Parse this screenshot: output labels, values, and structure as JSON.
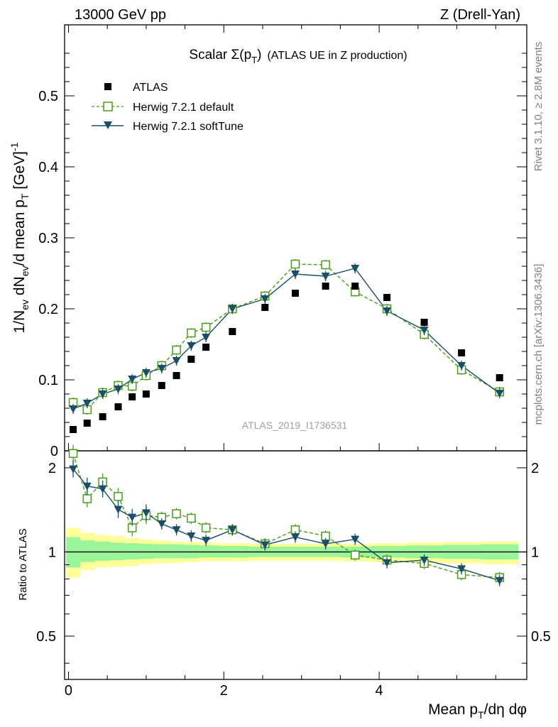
{
  "header": {
    "energy_label": "13000 GeV pp",
    "process_label": "Z (Drell-Yan)"
  },
  "side_labels": {
    "rivet": "Rivet 3.1.10, ≥ 2.8M events",
    "mcplots": "mcplots.cern.ch [arXiv:1306.3436]"
  },
  "analysis_id": "ATLAS_2019_I1736531",
  "chart_data": {
    "type": "scatter",
    "title": "Scalar Σ(pT) (ATLAS UE in Z production)",
    "title_parts": {
      "prefix": "Scalar Σ(p",
      "sub": "T",
      "suffix": ")",
      "note": "(ATLAS UE in Z production)"
    },
    "xlabel": "Mean pT/dη dφ",
    "ylabel": "1/Nev dNev/d mean pT [GeV]^-1",
    "ratio_ylabel": "Ratio to ATLAS",
    "xlim": [
      -0.05,
      5.9
    ],
    "ylim": [
      0,
      0.6
    ],
    "ratio_ylim": [
      0.35,
      2.3
    ],
    "x_ticks": [
      "0",
      "2",
      "4"
    ],
    "y_ticks": [
      "0",
      "0.1",
      "0.2",
      "0.3",
      "0.4",
      "0.5"
    ],
    "ratio_ticks": [
      "0.5",
      "1",
      "2"
    ],
    "legend_position": "top-left",
    "x": [
      0.06,
      0.24,
      0.44,
      0.64,
      0.82,
      1.0,
      1.2,
      1.39,
      1.58,
      1.77,
      2.11,
      2.53,
      2.92,
      3.31,
      3.69,
      4.1,
      4.58,
      5.06,
      5.55
    ],
    "series": [
      {
        "name": "ATLAS",
        "style": "data",
        "color": "#000000",
        "values": [
          0.03,
          0.039,
          0.048,
          0.062,
          0.076,
          0.08,
          0.092,
          0.106,
          0.129,
          0.146,
          0.168,
          0.202,
          0.222,
          0.232,
          0.232,
          0.216,
          0.181,
          0.138,
          0.103
        ]
      },
      {
        "name": "Herwig 7.2.1 default",
        "style": "open-square-dashed",
        "color": "#4a9a1c",
        "values": [
          0.068,
          0.058,
          0.082,
          0.092,
          0.091,
          0.106,
          0.12,
          0.142,
          0.166,
          0.174,
          0.2,
          0.218,
          0.263,
          0.262,
          0.224,
          0.2,
          0.164,
          0.114,
          0.083
        ],
        "ratio": [
          2.25,
          1.55,
          1.78,
          1.58,
          1.22,
          1.35,
          1.33,
          1.37,
          1.32,
          1.22,
          1.2,
          1.07,
          1.2,
          1.14,
          0.975,
          0.935,
          0.91,
          0.83,
          0.81
        ]
      },
      {
        "name": "Herwig 7.2.1 softTune",
        "style": "filled-triangle-solid",
        "color": "#1a4f66",
        "values": [
          0.059,
          0.067,
          0.08,
          0.087,
          0.101,
          0.11,
          0.116,
          0.127,
          0.148,
          0.16,
          0.2,
          0.214,
          0.249,
          0.246,
          0.257,
          0.197,
          0.17,
          0.12,
          0.081
        ],
        "ratio": [
          1.98,
          1.72,
          1.68,
          1.42,
          1.33,
          1.38,
          1.26,
          1.2,
          1.14,
          1.1,
          1.2,
          1.06,
          1.13,
          1.07,
          1.11,
          0.915,
          0.935,
          0.87,
          0.79
        ]
      }
    ],
    "ratio_bands": {
      "yellow": [
        [
          0.81,
          1.22
        ],
        [
          0.86,
          1.17
        ],
        [
          0.88,
          1.15
        ],
        [
          0.885,
          1.14
        ],
        [
          0.89,
          1.12
        ],
        [
          0.905,
          1.11
        ],
        [
          0.91,
          1.1
        ],
        [
          0.915,
          1.09
        ],
        [
          0.92,
          1.085
        ],
        [
          0.925,
          1.08
        ],
        [
          0.925,
          1.075
        ],
        [
          0.93,
          1.07
        ],
        [
          0.93,
          1.07
        ],
        [
          0.93,
          1.07
        ],
        [
          0.925,
          1.07
        ],
        [
          0.92,
          1.075
        ],
        [
          0.915,
          1.08
        ],
        [
          0.91,
          1.085
        ],
        [
          0.905,
          1.09
        ]
      ],
      "green": [
        [
          0.88,
          1.13
        ],
        [
          0.92,
          1.1
        ],
        [
          0.93,
          1.09
        ],
        [
          0.935,
          1.08
        ],
        [
          0.94,
          1.075
        ],
        [
          0.945,
          1.07
        ],
        [
          0.95,
          1.065
        ],
        [
          0.95,
          1.065
        ],
        [
          0.95,
          1.06
        ],
        [
          0.955,
          1.055
        ],
        [
          0.955,
          1.05
        ],
        [
          0.96,
          1.045
        ],
        [
          0.96,
          1.045
        ],
        [
          0.96,
          1.045
        ],
        [
          0.955,
          1.045
        ],
        [
          0.955,
          1.05
        ],
        [
          0.95,
          1.055
        ],
        [
          0.945,
          1.06
        ],
        [
          0.94,
          1.065
        ]
      ]
    },
    "colors": {
      "yellow_band": "#ffff99",
      "green_band": "#99f599"
    }
  }
}
